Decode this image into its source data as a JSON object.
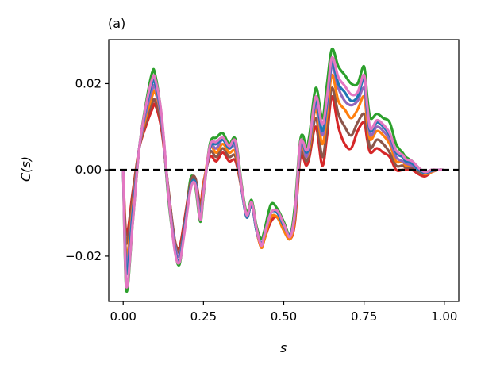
{
  "chart_data": {
    "type": "line",
    "panel_label": "(a)",
    "title": "",
    "xlabel": "s",
    "ylabel": "C(s)",
    "xlim": [
      -0.045,
      1.045
    ],
    "ylim": [
      -0.0305,
      0.0302
    ],
    "x_ticks": [
      0.0,
      0.25,
      0.5,
      0.75,
      1.0
    ],
    "x_tick_labels": [
      "0.00",
      "0.25",
      "0.50",
      "0.75",
      "1.00"
    ],
    "y_ticks": [
      -0.02,
      0.0,
      0.02
    ],
    "y_tick_labels": [
      "−0.02",
      "0.00",
      "0.02"
    ],
    "grid": false,
    "legend": "none",
    "reference_line": {
      "y": 0.0,
      "style": "dashed",
      "color": "#000000"
    },
    "x": [
      0.0,
      0.01,
      0.03,
      0.05,
      0.07,
      0.09,
      0.1,
      0.12,
      0.14,
      0.16,
      0.175,
      0.19,
      0.21,
      0.225,
      0.24,
      0.25,
      0.27,
      0.29,
      0.31,
      0.33,
      0.35,
      0.37,
      0.385,
      0.4,
      0.415,
      0.43,
      0.44,
      0.46,
      0.48,
      0.5,
      0.52,
      0.535,
      0.55,
      0.56,
      0.57,
      0.58,
      0.6,
      0.62,
      0.635,
      0.65,
      0.67,
      0.69,
      0.71,
      0.73,
      0.75,
      0.76,
      0.77,
      0.79,
      0.81,
      0.83,
      0.85,
      0.87,
      0.88,
      0.9,
      0.92,
      0.94,
      0.96,
      0.98,
      1.0
    ],
    "series": [
      {
        "color": "#2ca02c",
        "values": [
          0.0,
          -0.028,
          -0.012,
          0.005,
          0.015,
          0.0225,
          0.022,
          0.012,
          -0.006,
          -0.018,
          -0.022,
          -0.014,
          -0.002,
          -0.004,
          -0.012,
          -0.006,
          0.006,
          0.0075,
          0.0085,
          0.006,
          0.007,
          -0.004,
          -0.01,
          -0.007,
          -0.013,
          -0.016,
          -0.014,
          -0.008,
          -0.009,
          -0.012,
          -0.015,
          -0.008,
          0.006,
          0.008,
          0.005,
          0.008,
          0.019,
          0.012,
          0.02,
          0.028,
          0.024,
          0.022,
          0.02,
          0.02,
          0.024,
          0.017,
          0.012,
          0.013,
          0.012,
          0.011,
          0.006,
          0.004,
          0.003,
          0.002,
          0.0005,
          -0.0005,
          0.0,
          0.0,
          0.0
        ]
      },
      {
        "color": "#d62728",
        "values": [
          0.0,
          -0.015,
          -0.005,
          0.005,
          0.01,
          0.014,
          0.015,
          0.009,
          -0.004,
          -0.016,
          -0.018,
          -0.012,
          -0.003,
          -0.002,
          -0.008,
          -0.003,
          0.003,
          0.002,
          0.004,
          0.002,
          0.002,
          -0.005,
          -0.011,
          -0.008,
          -0.014,
          -0.018,
          -0.016,
          -0.012,
          -0.011,
          -0.014,
          -0.016,
          -0.012,
          0.002,
          0.003,
          0.001,
          0.003,
          0.01,
          0.001,
          0.008,
          0.017,
          0.01,
          0.006,
          0.005,
          0.009,
          0.011,
          0.007,
          0.004,
          0.005,
          0.004,
          0.003,
          0.0,
          0.0,
          0.0,
          0.0,
          -0.001,
          -0.0015,
          -0.0005,
          0.0,
          0.0
        ]
      },
      {
        "color": "#8c564b",
        "values": [
          0.0,
          -0.017,
          -0.006,
          0.005,
          0.011,
          0.0155,
          0.016,
          0.01,
          -0.004,
          -0.016,
          -0.019,
          -0.013,
          -0.003,
          -0.002,
          -0.009,
          -0.004,
          0.004,
          0.003,
          0.005,
          0.003,
          0.003,
          -0.005,
          -0.011,
          -0.008,
          -0.014,
          -0.018,
          -0.016,
          -0.011,
          -0.011,
          -0.014,
          -0.016,
          -0.011,
          0.003,
          0.004,
          0.002,
          0.004,
          0.012,
          0.003,
          0.01,
          0.019,
          0.013,
          0.01,
          0.008,
          0.011,
          0.013,
          0.009,
          0.005,
          0.007,
          0.006,
          0.004,
          0.001,
          0.001,
          0.0005,
          0.0005,
          -0.0005,
          -0.001,
          -0.0005,
          0.0,
          0.0
        ]
      },
      {
        "color": "#ff7f0e",
        "values": [
          0.0,
          -0.02,
          -0.008,
          0.005,
          0.012,
          0.017,
          0.018,
          0.011,
          -0.005,
          -0.017,
          -0.02,
          -0.014,
          -0.004,
          -0.003,
          -0.01,
          -0.004,
          0.005,
          0.004,
          0.006,
          0.004,
          0.004,
          -0.005,
          -0.011,
          -0.008,
          -0.014,
          -0.018,
          -0.016,
          -0.011,
          -0.011,
          -0.014,
          -0.016,
          -0.011,
          0.004,
          0.005,
          0.003,
          0.005,
          0.014,
          0.006,
          0.013,
          0.022,
          0.016,
          0.014,
          0.012,
          0.014,
          0.017,
          0.011,
          0.007,
          0.009,
          0.008,
          0.006,
          0.002,
          0.002,
          0.001,
          0.001,
          0.0,
          -0.001,
          -0.0005,
          0.0,
          0.0
        ]
      },
      {
        "color": "#9467bd",
        "values": [
          0.0,
          -0.022,
          -0.009,
          0.005,
          0.013,
          0.0185,
          0.019,
          0.011,
          -0.005,
          -0.017,
          -0.02,
          -0.014,
          -0.004,
          -0.003,
          -0.01,
          -0.005,
          0.005,
          0.005,
          0.007,
          0.005,
          0.005,
          -0.005,
          -0.011,
          -0.008,
          -0.014,
          -0.017,
          -0.015,
          -0.01,
          -0.01,
          -0.013,
          -0.015,
          -0.01,
          0.004,
          0.006,
          0.003,
          0.006,
          0.015,
          0.008,
          0.015,
          0.024,
          0.019,
          0.016,
          0.015,
          0.016,
          0.019,
          0.013,
          0.008,
          0.01,
          0.009,
          0.007,
          0.003,
          0.002,
          0.0015,
          0.001,
          0.0,
          -0.0008,
          -0.0003,
          0.0,
          0.0
        ]
      },
      {
        "color": "#1f77b4",
        "values": [
          0.0,
          -0.024,
          -0.01,
          0.005,
          0.014,
          0.02,
          0.02,
          0.012,
          -0.005,
          -0.018,
          -0.021,
          -0.014,
          -0.004,
          -0.003,
          -0.011,
          -0.005,
          0.005,
          0.006,
          0.007,
          0.005,
          0.006,
          -0.005,
          -0.011,
          -0.008,
          -0.014,
          -0.017,
          -0.015,
          -0.01,
          -0.01,
          -0.013,
          -0.015,
          -0.01,
          0.005,
          0.006,
          0.004,
          0.006,
          0.016,
          0.009,
          0.016,
          0.025,
          0.02,
          0.018,
          0.016,
          0.017,
          0.021,
          0.014,
          0.009,
          0.011,
          0.01,
          0.008,
          0.004,
          0.003,
          0.002,
          0.0015,
          0.0,
          -0.0007,
          -0.0002,
          0.0,
          0.0
        ]
      },
      {
        "color": "#e377c2",
        "values": [
          0.0,
          -0.027,
          -0.012,
          0.005,
          0.0145,
          0.021,
          0.021,
          0.0125,
          -0.005,
          -0.0185,
          -0.0215,
          -0.015,
          -0.0045,
          -0.0035,
          -0.0115,
          -0.0055,
          0.0055,
          0.0065,
          0.0075,
          0.0055,
          0.0065,
          -0.0045,
          -0.0105,
          -0.0075,
          -0.0135,
          -0.0175,
          -0.015,
          -0.01,
          -0.0095,
          -0.0125,
          -0.0155,
          -0.0095,
          0.0055,
          0.0065,
          0.0045,
          0.0065,
          0.017,
          0.0105,
          0.017,
          0.026,
          0.0215,
          0.0195,
          0.0175,
          0.018,
          0.022,
          0.015,
          0.0095,
          0.0115,
          0.0105,
          0.0085,
          0.0045,
          0.0035,
          0.0025,
          0.002,
          0.0005,
          -0.0005,
          0.0,
          0.0,
          0.0
        ]
      }
    ]
  }
}
